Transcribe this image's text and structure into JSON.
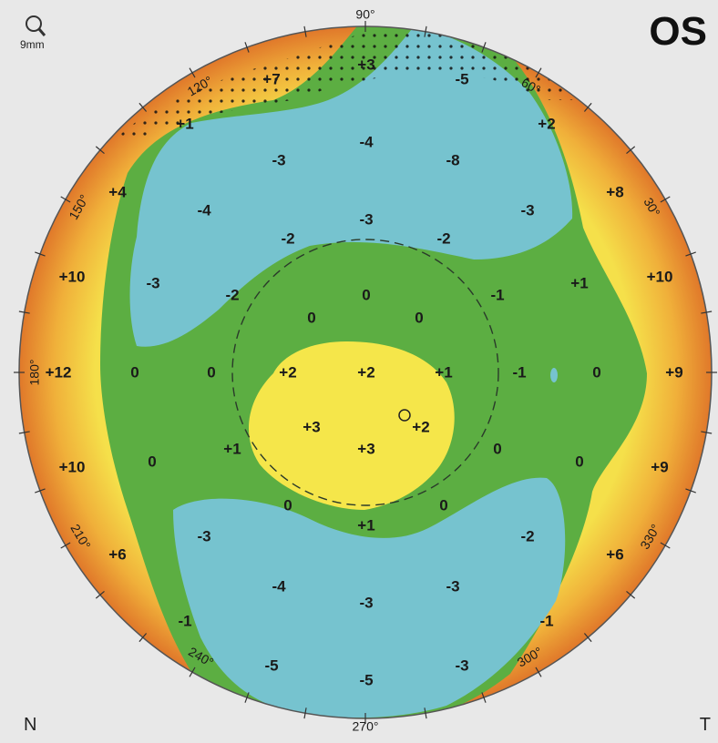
{
  "eye": "OS",
  "scale_label": "9mm",
  "corner_left": "N",
  "corner_right": "T",
  "zoom_icon": "magnifier-icon",
  "degree_labels": [
    {
      "text": "90°",
      "angle": 90
    },
    {
      "text": "60°",
      "angle": 60
    },
    {
      "text": "30°",
      "angle": 30
    },
    {
      "text": "120°",
      "angle": 120
    },
    {
      "text": "150°",
      "angle": 150
    },
    {
      "text": "180°",
      "angle": 180
    },
    {
      "text": "210°",
      "angle": 210
    },
    {
      "text": "240°",
      "angle": 240
    },
    {
      "text": "270°",
      "angle": 270
    },
    {
      "text": "300°",
      "angle": 300
    },
    {
      "text": "330°",
      "angle": 330
    }
  ],
  "colors": {
    "orange": "#e8892a",
    "yellow": "#f2e84a",
    "green": "#5cae42",
    "blue": "#76c3cf",
    "background": "#e8e8e8"
  },
  "values": [
    {
      "t": "+7"
    },
    {
      "t": "+3"
    },
    {
      "t": "-5"
    },
    {
      "t": "+1"
    },
    {
      "t": "+2"
    },
    {
      "t": "-3"
    },
    {
      "t": "-4"
    },
    {
      "t": "-8"
    },
    {
      "t": "+4"
    },
    {
      "t": "-4"
    },
    {
      "t": "+8"
    },
    {
      "t": "-3"
    },
    {
      "t": "-3"
    },
    {
      "t": "-2"
    },
    {
      "t": "-2"
    },
    {
      "t": "+10"
    },
    {
      "t": "-3"
    },
    {
      "t": "-2"
    },
    {
      "t": "0"
    },
    {
      "t": "-1"
    },
    {
      "t": "+1"
    },
    {
      "t": "+10"
    },
    {
      "t": "0"
    },
    {
      "t": "0"
    },
    {
      "t": "+12"
    },
    {
      "t": "0"
    },
    {
      "t": "0"
    },
    {
      "t": "+2"
    },
    {
      "t": "+2"
    },
    {
      "t": "+1"
    },
    {
      "t": "-1"
    },
    {
      "t": "0"
    },
    {
      "t": "+9"
    },
    {
      "t": "+3"
    },
    {
      "t": "+2"
    },
    {
      "t": "+1"
    },
    {
      "t": "+3"
    },
    {
      "t": "0"
    },
    {
      "t": "0"
    },
    {
      "t": "+10"
    },
    {
      "t": "0"
    },
    {
      "t": "+9"
    },
    {
      "t": "0"
    },
    {
      "t": "0"
    },
    {
      "t": "+1"
    },
    {
      "t": "-3"
    },
    {
      "t": "-2"
    },
    {
      "t": "+6"
    },
    {
      "t": "+6"
    },
    {
      "t": "-4"
    },
    {
      "t": "-3"
    },
    {
      "t": "-3"
    },
    {
      "t": "-1"
    },
    {
      "t": "-1"
    },
    {
      "t": "-5"
    },
    {
      "t": "-3"
    },
    {
      "t": "-5"
    }
  ]
}
